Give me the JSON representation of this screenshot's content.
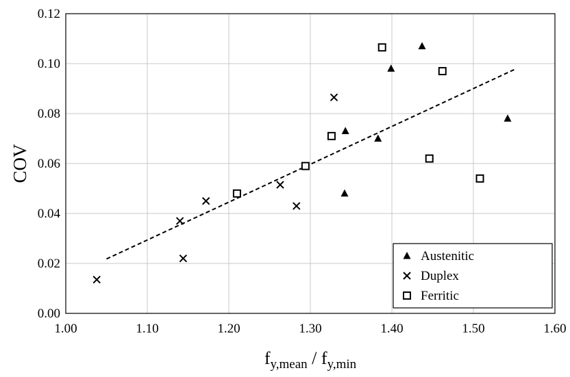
{
  "chart_data": {
    "type": "scatter",
    "title": "",
    "xlabel": {
      "base": "f",
      "sub1": "y,mean",
      "sep": " / ",
      "base2": "f",
      "sub2": "y,min"
    },
    "ylabel": "COV",
    "xlim": [
      1.0,
      1.6
    ],
    "ylim": [
      0.0,
      0.12
    ],
    "xticks": [
      1.0,
      1.1,
      1.2,
      1.3,
      1.4,
      1.5,
      1.6
    ],
    "yticks": [
      0.0,
      0.02,
      0.04,
      0.06,
      0.08,
      0.1,
      0.12
    ],
    "xtick_labels": [
      "1.00",
      "1.10",
      "1.20",
      "1.30",
      "1.40",
      "1.50",
      "1.60"
    ],
    "ytick_labels": [
      "0.00",
      "0.02",
      "0.04",
      "0.06",
      "0.08",
      "0.10",
      "0.12"
    ],
    "grid": true,
    "legend_position": "bottom-right",
    "series": [
      {
        "name": "Austenitic",
        "marker": "triangle",
        "color": "#000000",
        "points": [
          {
            "x": 1.343,
            "y": 0.073
          },
          {
            "x": 1.342,
            "y": 0.048
          },
          {
            "x": 1.383,
            "y": 0.07
          },
          {
            "x": 1.399,
            "y": 0.098
          },
          {
            "x": 1.437,
            "y": 0.107
          },
          {
            "x": 1.542,
            "y": 0.078
          }
        ]
      },
      {
        "name": "Duplex",
        "marker": "x",
        "color": "#000000",
        "points": [
          {
            "x": 1.038,
            "y": 0.0135
          },
          {
            "x": 1.14,
            "y": 0.037
          },
          {
            "x": 1.144,
            "y": 0.022
          },
          {
            "x": 1.172,
            "y": 0.045
          },
          {
            "x": 1.263,
            "y": 0.0515
          },
          {
            "x": 1.283,
            "y": 0.043
          },
          {
            "x": 1.329,
            "y": 0.0865
          }
        ]
      },
      {
        "name": "Ferritic",
        "marker": "square",
        "color": "#000000",
        "points": [
          {
            "x": 1.21,
            "y": 0.048
          },
          {
            "x": 1.294,
            "y": 0.059
          },
          {
            "x": 1.326,
            "y": 0.071
          },
          {
            "x": 1.388,
            "y": 0.1065
          },
          {
            "x": 1.446,
            "y": 0.062
          },
          {
            "x": 1.462,
            "y": 0.097
          },
          {
            "x": 1.508,
            "y": 0.054
          }
        ]
      }
    ],
    "trendline": {
      "style": "dashed",
      "color": "#000000",
      "points": [
        {
          "x": 1.05,
          "y": 0.0218
        },
        {
          "x": 1.55,
          "y": 0.0976
        }
      ]
    }
  }
}
